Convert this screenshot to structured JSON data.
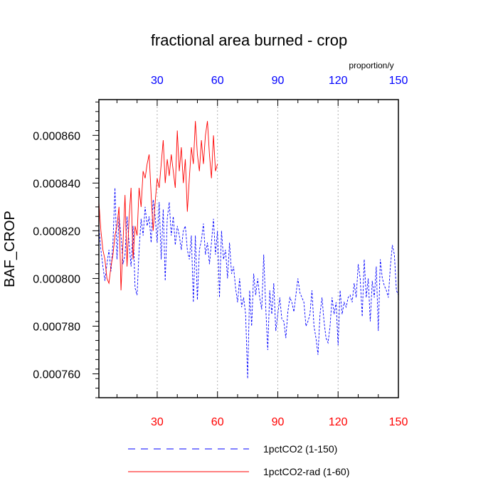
{
  "chart_data": {
    "type": "line",
    "title": "fractional area burned - crop",
    "ylabel": "BAF_CROP",
    "units_label": "proportion/y",
    "xlim": [
      1,
      150
    ],
    "ylim": [
      0.00075,
      0.000875
    ],
    "x_ticks": [
      30,
      60,
      90,
      120,
      150
    ],
    "x_tick_labels": [
      "30",
      "60",
      "90",
      "120",
      "150"
    ],
    "y_ticks": [
      0.00076,
      0.00078,
      0.0008,
      0.00082,
      0.00084,
      0.00086
    ],
    "y_tick_labels": [
      "0.000760",
      "0.000780",
      "0.000800",
      "0.000820",
      "0.000840",
      "0.000860"
    ],
    "x_tick_colors": {
      "bottom": "#ff0000",
      "top": "#0000ff"
    },
    "vertical_grid": true,
    "legend_position": "bottom",
    "series": [
      {
        "name": "1pctCO2 (1-150)",
        "color": "#0000ff",
        "style": "dashed",
        "x_start": 1,
        "values": [
          0.000822,
          0.000812,
          0.000805,
          0.000799,
          0.000806,
          0.000812,
          0.000803,
          0.000815,
          0.000838,
          0.000808,
          0.000826,
          0.000818,
          0.000806,
          0.00081,
          0.000826,
          0.000815,
          0.000805,
          0.000822,
          0.000796,
          0.000793,
          0.000812,
          0.000825,
          0.000818,
          0.00083,
          0.000822,
          0.000826,
          0.000815,
          0.000833,
          0.000826,
          0.000815,
          0.000832,
          0.000808,
          0.000829,
          0.000799,
          0.000825,
          0.000832,
          0.000818,
          0.000826,
          0.000814,
          0.000822,
          0.000818,
          0.000812,
          0.00082,
          0.000822,
          0.000812,
          0.000808,
          0.000818,
          0.00079,
          0.000818,
          0.000791,
          0.000812,
          0.000816,
          0.000823,
          0.00081,
          0.000815,
          0.000806,
          0.000815,
          0.000825,
          0.00081,
          0.00082,
          0.000792,
          0.00082,
          0.000808,
          0.000812,
          0.0008,
          0.000815,
          0.000802,
          0.000805,
          0.000796,
          0.00079,
          0.0008,
          0.000788,
          0.000792,
          0.000785,
          0.000758,
          0.000795,
          0.00078,
          0.000802,
          0.000793,
          0.0008,
          0.000792,
          0.000787,
          0.00081,
          0.000788,
          0.00077,
          0.000795,
          0.000785,
          0.000798,
          0.000778,
          0.000785,
          0.000792,
          0.000783,
          0.000782,
          0.000775,
          0.000786,
          0.000792,
          0.00079,
          0.000786,
          0.000793,
          0.0008,
          0.000794,
          0.000792,
          0.00079,
          0.00078,
          0.000782,
          0.000785,
          0.000795,
          0.00078,
          0.000775,
          0.000768,
          0.000785,
          0.000792,
          0.000782,
          0.000775,
          0.000773,
          0.00078,
          0.000792,
          0.000785,
          0.00079,
          0.000772,
          0.000795,
          0.000785,
          0.00079,
          0.000788,
          0.000792,
          0.000793,
          0.00079,
          0.000798,
          0.000792,
          0.000806,
          0.0008,
          0.000784,
          0.000808,
          0.000792,
          0.0008,
          0.000782,
          0.000799,
          0.000792,
          0.000805,
          0.000778,
          0.000808,
          0.0008,
          0.000797,
          0.000795,
          0.000792,
          0.000805,
          0.000814,
          0.00081,
          0.000795,
          0.000793
        ]
      },
      {
        "name": "1pctCO2-rad (1-60)",
        "color": "#ff0000",
        "style": "solid",
        "x_start": 1,
        "values": [
          0.000832,
          0.00082,
          0.000812,
          0.000808,
          0.0008,
          0.000798,
          0.000805,
          0.00081,
          0.000818,
          0.000822,
          0.00083,
          0.000795,
          0.000815,
          0.000835,
          0.000805,
          0.000825,
          0.000838,
          0.000808,
          0.000822,
          0.000818,
          0.000838,
          0.00083,
          0.000845,
          0.000842,
          0.000848,
          0.000852,
          0.000835,
          0.00082,
          0.000832,
          0.000842,
          0.000838,
          0.000848,
          0.000858,
          0.00084,
          0.00085,
          0.000843,
          0.000852,
          0.000845,
          0.000838,
          0.000862,
          0.000845,
          0.000855,
          0.00084,
          0.00085,
          0.000828,
          0.000842,
          0.000855,
          0.000848,
          0.000866,
          0.000852,
          0.000845,
          0.000858,
          0.000848,
          0.00086,
          0.000866,
          0.000852,
          0.000842,
          0.00086,
          0.000845,
          0.000848
        ]
      }
    ]
  }
}
